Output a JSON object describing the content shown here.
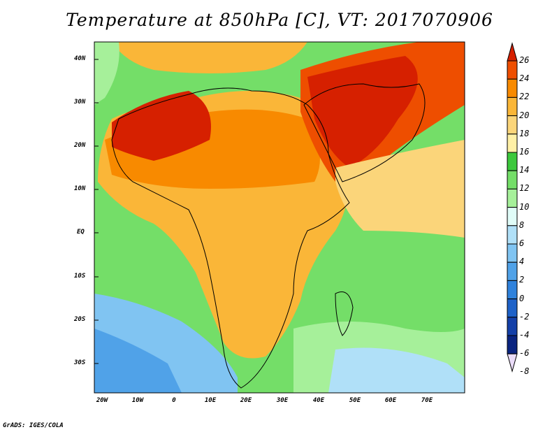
{
  "title": "Temperature at 850hPa [C], VT: 2017070906",
  "credit": "GrADS: IGES/COLA",
  "lat_labels": [
    "40N",
    "30N",
    "20N",
    "10N",
    "EQ",
    "10S",
    "20S",
    "30S"
  ],
  "lon_labels": [
    "20W",
    "10W",
    "0",
    "10E",
    "20E",
    "30E",
    "40E",
    "50E",
    "60E",
    "70E"
  ],
  "colorbar": {
    "levels": [
      "26",
      "24",
      "22",
      "20",
      "18",
      "16",
      "14",
      "12",
      "10",
      "8",
      "6",
      "4",
      "2",
      "0",
      "-2",
      "-4",
      "-6",
      "-8"
    ],
    "colors": [
      "#d62000",
      "#ee4e00",
      "#f88a00",
      "#fab638",
      "#fbd57a",
      "#fff0a6",
      "#3cc83c",
      "#74de68",
      "#a6f09a",
      "#e0fcf8",
      "#b0e0f8",
      "#80c4f2",
      "#50a2e8",
      "#2f82dc",
      "#1e62c8",
      "#1440a8",
      "#0a2480",
      "#eadcf8"
    ]
  },
  "variable": "Temperature at 850hPa",
  "units": "C"
}
